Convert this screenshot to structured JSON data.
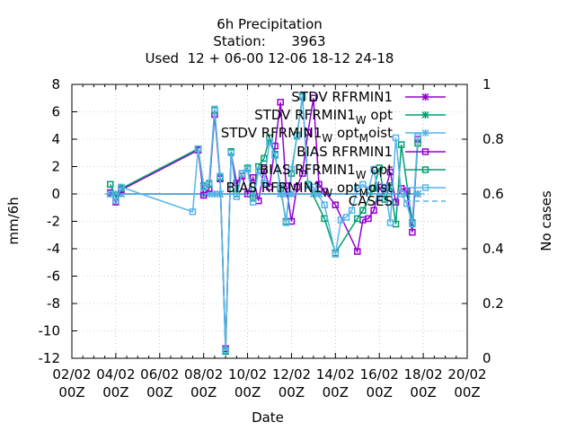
{
  "chart_data": {
    "type": "line",
    "title_lines": [
      "6h Precipitation",
      "Station:      3963",
      "Used  12 + 06-00 12-06 18-12 24-18"
    ],
    "xlabel": "Date",
    "ylabel": "mm/6h",
    "y2label": "No cases",
    "xlim": [
      0,
      18
    ],
    "ylim": [
      -12,
      8
    ],
    "y2lim": [
      0,
      1
    ],
    "x_ticks": [
      {
        "x": 0,
        "line1": "02/02",
        "line2": "00Z"
      },
      {
        "x": 2,
        "line1": "04/02",
        "line2": "00Z"
      },
      {
        "x": 4,
        "line1": "06/02",
        "line2": "00Z"
      },
      {
        "x": 6,
        "line1": "08/02",
        "line2": "00Z"
      },
      {
        "x": 8,
        "line1": "10/02",
        "line2": "00Z"
      },
      {
        "x": 10,
        "line1": "12/02",
        "line2": "00Z"
      },
      {
        "x": 12,
        "line1": "14/02",
        "line2": "00Z"
      },
      {
        "x": 14,
        "line1": "16/02",
        "line2": "00Z"
      },
      {
        "x": 16,
        "line1": "18/02",
        "line2": "00Z"
      },
      {
        "x": 18,
        "line1": "20/02",
        "line2": "00Z"
      }
    ],
    "y_ticks": [
      8,
      6,
      4,
      2,
      0,
      -2,
      -4,
      -6,
      -8,
      -10,
      -12
    ],
    "y2_ticks": [
      {
        "v": 1,
        "label": "1"
      },
      {
        "v": 0.8,
        "label": "0.8"
      },
      {
        "v": 0.6,
        "label": "0.6"
      },
      {
        "v": 0.4,
        "label": "0.4"
      },
      {
        "v": 0.2,
        "label": "0.2"
      },
      {
        "v": 0,
        "label": "0"
      }
    ],
    "legend_position": "top-right",
    "series": [
      {
        "name": "STDV RFRMIN1",
        "sub": "",
        "color": "#9400d3",
        "marker": "x",
        "axis": "y",
        "points": [
          [
            1.75,
            0
          ],
          [
            2,
            0
          ],
          [
            2.25,
            0
          ],
          [
            6,
            0
          ],
          [
            6.25,
            0
          ],
          [
            6.5,
            0
          ],
          [
            6.75,
            0
          ],
          [
            9.5,
            0
          ],
          [
            9.75,
            0
          ],
          [
            10,
            0
          ],
          [
            11,
            0
          ],
          [
            11.25,
            0
          ],
          [
            15.25,
            0
          ],
          [
            15.75,
            0
          ]
        ]
      },
      {
        "name": "STDV RFRMIN1",
        "sub": "W",
        "tail": " opt",
        "color": "#009e73",
        "marker": "x",
        "axis": "y",
        "points": [
          [
            1.75,
            0
          ],
          [
            2,
            0
          ],
          [
            2.25,
            0
          ],
          [
            6,
            0
          ],
          [
            6.25,
            0
          ],
          [
            6.5,
            0
          ],
          [
            6.75,
            0
          ],
          [
            9.5,
            0
          ],
          [
            9.75,
            0
          ],
          [
            10,
            0
          ],
          [
            11,
            0
          ],
          [
            11.25,
            0
          ],
          [
            15.25,
            0
          ],
          [
            15.75,
            0
          ]
        ]
      },
      {
        "name": "STDV RFRMIN1",
        "sub": "W",
        "tail": " opt",
        "sub2": "M",
        "tail2": "oist",
        "color": "#56b4e9",
        "marker": "x",
        "axis": "y",
        "points": [
          [
            1.75,
            0
          ],
          [
            2,
            0
          ],
          [
            2.25,
            0
          ],
          [
            6,
            0
          ],
          [
            6.25,
            0
          ],
          [
            6.5,
            0
          ],
          [
            6.75,
            0
          ],
          [
            9.5,
            0
          ],
          [
            9.75,
            0
          ],
          [
            10,
            0
          ],
          [
            11,
            0
          ],
          [
            11.25,
            0
          ],
          [
            15.25,
            0
          ],
          [
            15.75,
            0
          ]
        ]
      },
      {
        "name": "BIAS RFRMIN1",
        "sub": "",
        "color": "#9400d3",
        "marker": "s",
        "axis": "y",
        "points": [
          [
            1.75,
            0.1
          ],
          [
            2,
            -0.6
          ],
          [
            2.25,
            0.3
          ],
          [
            5.75,
            3.2
          ],
          [
            6,
            -0.1
          ],
          [
            6.25,
            0.4
          ],
          [
            6.5,
            5.8
          ],
          [
            6.75,
            1.1
          ],
          [
            7,
            -11.3
          ],
          [
            7.25,
            3
          ],
          [
            7.5,
            0.8
          ],
          [
            7.75,
            1.3
          ],
          [
            8,
            0
          ],
          [
            8.25,
            1.2
          ],
          [
            8.5,
            -0.5
          ],
          [
            8.75,
            1.8
          ],
          [
            9,
            0.5
          ],
          [
            9.25,
            3.5
          ],
          [
            9.5,
            6.7
          ],
          [
            9.75,
            0.6
          ],
          [
            10,
            -2
          ],
          [
            10.25,
            0.5
          ],
          [
            10.5,
            1.5
          ],
          [
            10.75,
            4.5
          ],
          [
            11,
            7
          ],
          [
            11.25,
            0.7
          ],
          [
            11.5,
            0.2
          ],
          [
            12,
            -0.8
          ],
          [
            13,
            -4.2
          ],
          [
            13.25,
            -1.9
          ],
          [
            13.5,
            -1.8
          ],
          [
            13.75,
            -1.2
          ],
          [
            14,
            0.5
          ],
          [
            14.25,
            0.2
          ],
          [
            14.5,
            1.6
          ],
          [
            14.75,
            -0.6
          ],
          [
            15,
            0.4
          ],
          [
            15.25,
            0.2
          ],
          [
            15.5,
            -2.8
          ],
          [
            15.75,
            4
          ]
        ]
      },
      {
        "name": "BIAS RFRMIN1",
        "sub": "W",
        "tail": " opt",
        "color": "#009e73",
        "marker": "s",
        "axis": "y",
        "points": [
          [
            1.75,
            0.7
          ],
          [
            2,
            -0.2
          ],
          [
            2.25,
            0.4
          ],
          [
            5.75,
            3.3
          ],
          [
            6,
            0.6
          ],
          [
            6.25,
            0.7
          ],
          [
            6.5,
            6.1
          ],
          [
            6.75,
            1.2
          ],
          [
            7,
            -11.5
          ],
          [
            7.25,
            3.1
          ],
          [
            7.5,
            0
          ],
          [
            7.75,
            1.5
          ],
          [
            8,
            1.9
          ],
          [
            8.25,
            -0.3
          ],
          [
            8.5,
            2
          ],
          [
            8.75,
            2.6
          ],
          [
            9,
            4.1
          ],
          [
            9.25,
            2.9
          ],
          [
            9.5,
            0.4
          ],
          [
            9.75,
            -2
          ],
          [
            10,
            1.5
          ],
          [
            10.25,
            4.3
          ],
          [
            10.5,
            7.1
          ],
          [
            10.75,
            0.7
          ],
          [
            11.5,
            -1.8
          ],
          [
            12,
            -4.3
          ],
          [
            13,
            -1.8
          ],
          [
            13.25,
            -1.2
          ],
          [
            13.75,
            0.4
          ],
          [
            14,
            1.9
          ],
          [
            14.25,
            -0.4
          ],
          [
            14.5,
            0.6
          ],
          [
            14.75,
            -2.2
          ],
          [
            15,
            3.6
          ],
          [
            15.5,
            -2.1
          ],
          [
            15.75,
            3.7
          ]
        ]
      },
      {
        "name": "BIAS RFRMIN1",
        "sub": "W",
        "tail": " opt",
        "sub2": "M",
        "tail2": "oist",
        "color": "#56b4e9",
        "marker": "s",
        "axis": "y",
        "points": [
          [
            1.75,
            0
          ],
          [
            2,
            -0.5
          ],
          [
            2.25,
            0.5
          ],
          [
            5.5,
            -1.3
          ],
          [
            5.75,
            3.3
          ],
          [
            6,
            0.5
          ],
          [
            6.25,
            0.8
          ],
          [
            6.5,
            6.2
          ],
          [
            6.75,
            1.3
          ],
          [
            7,
            -11.4
          ],
          [
            7.25,
            3
          ],
          [
            7.5,
            -0.2
          ],
          [
            7.75,
            1.5
          ],
          [
            8,
            1.8
          ],
          [
            8.25,
            -0.6
          ],
          [
            8.5,
            1.7
          ],
          [
            8.75,
            0.8
          ],
          [
            9,
            3.8
          ],
          [
            9.25,
            2.8
          ],
          [
            9.5,
            0.6
          ],
          [
            9.75,
            -2.1
          ],
          [
            10,
            1.8
          ],
          [
            10.25,
            4.2
          ],
          [
            10.5,
            7.2
          ],
          [
            10.75,
            0.6
          ],
          [
            11,
            0.5
          ],
          [
            11.5,
            -0.8
          ],
          [
            12,
            -4.4
          ],
          [
            12.25,
            -1.9
          ],
          [
            12.5,
            -1.7
          ],
          [
            12.75,
            -1.2
          ],
          [
            13,
            0.4
          ],
          [
            13.25,
            0.7
          ],
          [
            13.5,
            0.3
          ],
          [
            13.75,
            1.8
          ],
          [
            14,
            -0.3
          ],
          [
            14.25,
            0.5
          ],
          [
            14.5,
            -2.1
          ],
          [
            14.75,
            4.1
          ],
          [
            15,
            0
          ],
          [
            15.25,
            -0.7
          ],
          [
            15.5,
            -2.2
          ],
          [
            15.75,
            4.2
          ]
        ]
      },
      {
        "name": "CASES",
        "sub": "",
        "color": "#56b4e9",
        "marker": "none",
        "axis": "y2",
        "dashed": true,
        "points": [
          [
            1.5,
            0.6
          ],
          [
            16.25,
            0.6
          ]
        ]
      }
    ]
  }
}
